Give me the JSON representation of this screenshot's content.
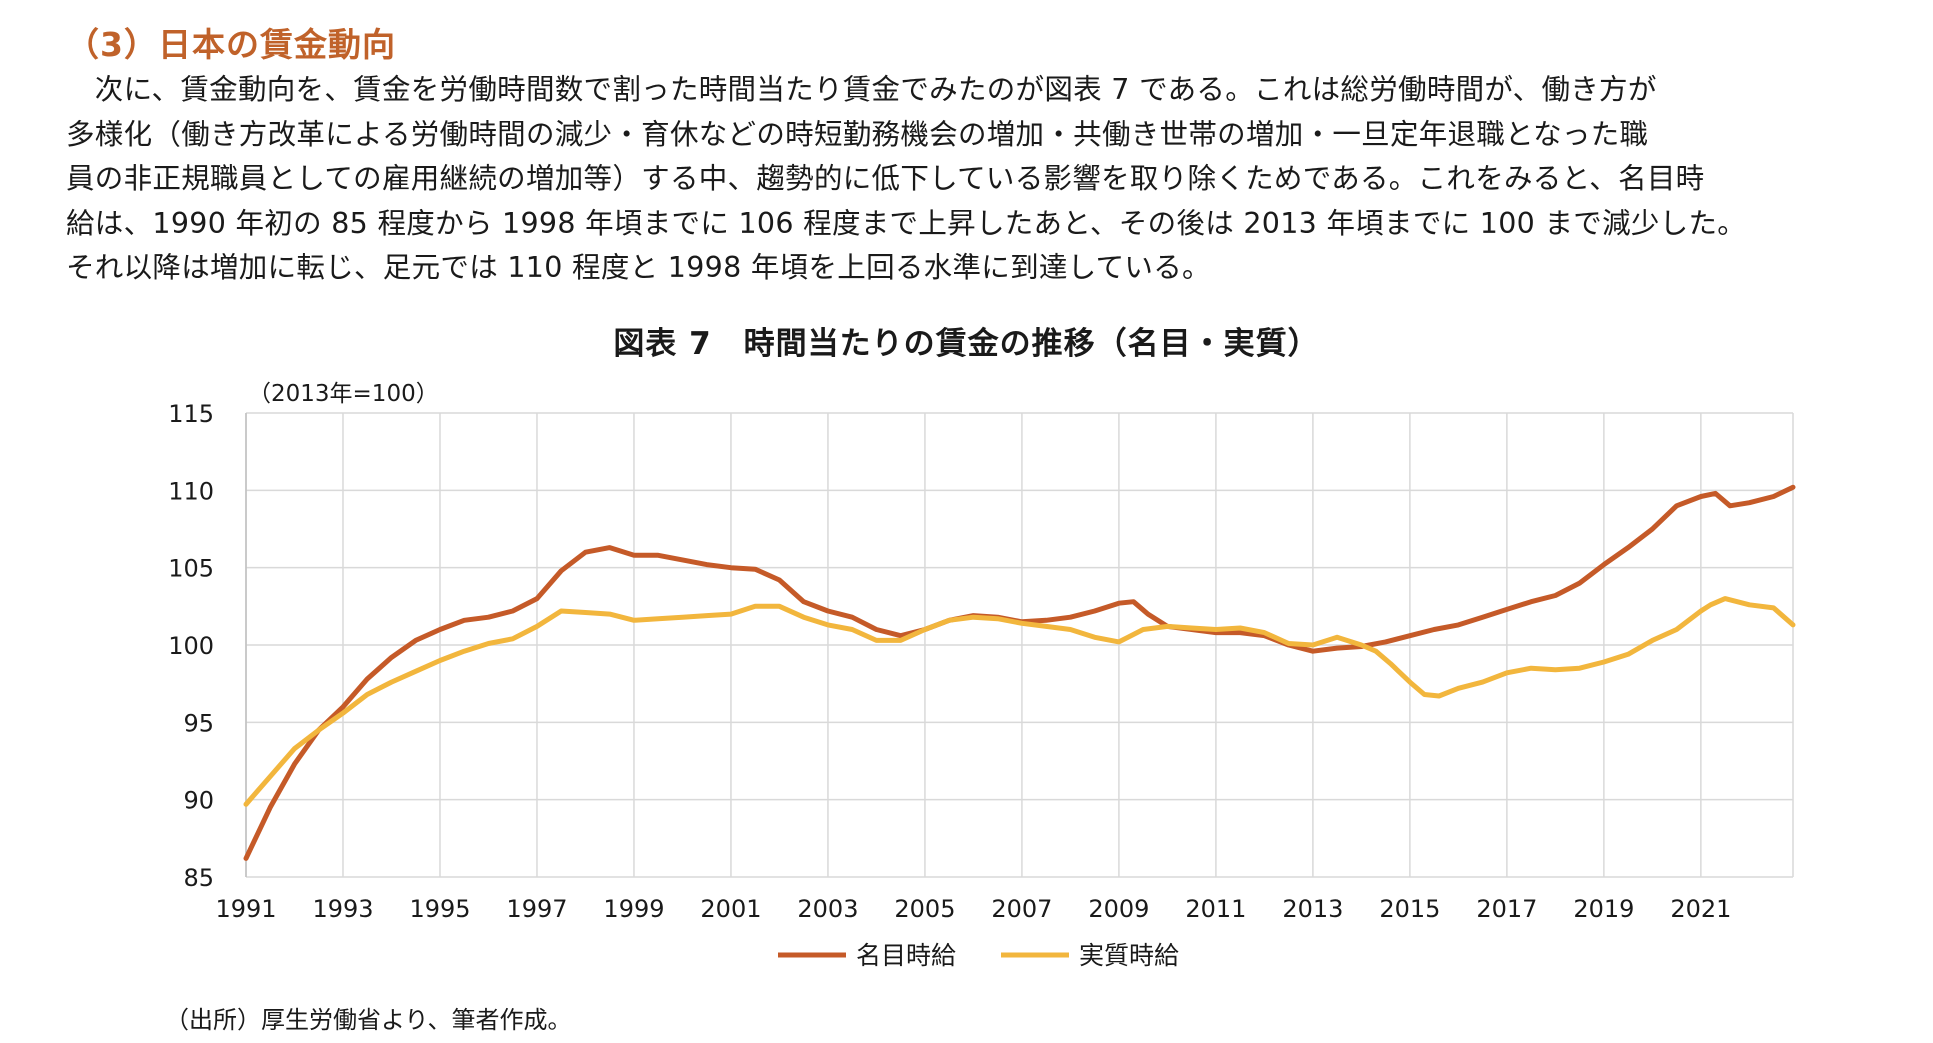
{
  "section": {
    "title": "（3）日本の賃金動向"
  },
  "body": {
    "lines": [
      "　次に、賃金動向を、賃金を労働時間数で割った時間当たり賃金でみたのが図表 7 である。これは総労働時間が、働き方が",
      "多様化（働き方改革による労働時間の減少・育休などの時短勤務機会の増加・共働き世帯の増加・一旦定年退職となった職",
      "員の非正規職員としての雇用継続の増加等）する中、趨勢的に低下している影響を取り除くためである。これをみると、名目時",
      "給は、1990 年初の 85 程度から 1998 年頃までに 106 程度まで上昇したあと、その後は 2013 年頃までに 100 まで減少した。",
      "それ以降は増加に転じ、足元では 110 程度と 1998 年頃を上回る水準に到達している。"
    ]
  },
  "source_note": "（出所）厚生労働省より、筆者作成。",
  "chart_data": {
    "type": "line",
    "title": "図表 7　時間当たりの賃金の推移（名目・実質）",
    "unit_label": "（2013年=100）",
    "xlabel": "",
    "ylabel": "",
    "xlim": [
      1991,
      2022.9
    ],
    "ylim": [
      85,
      115
    ],
    "yticks": [
      85,
      90,
      95,
      100,
      105,
      110,
      115
    ],
    "xticks": [
      "1991",
      "1993",
      "1995",
      "1997",
      "1999",
      "2001",
      "2003",
      "2005",
      "2007",
      "2009",
      "2011",
      "2013",
      "2015",
      "2017",
      "2019",
      "2021"
    ],
    "grid": true,
    "legend_position": "bottom",
    "series": [
      {
        "name": "名目時給",
        "color": "#c55a28",
        "x": [
          1991.0,
          1991.5,
          1992.0,
          1992.5,
          1993.0,
          1993.5,
          1994.0,
          1994.5,
          1995.0,
          1995.5,
          1996.0,
          1996.5,
          1997.0,
          1997.5,
          1998.0,
          1998.5,
          1999.0,
          1999.5,
          2000.0,
          2000.5,
          2001.0,
          2001.5,
          2002.0,
          2002.5,
          2003.0,
          2003.5,
          2004.0,
          2004.5,
          2005.0,
          2005.5,
          2006.0,
          2006.5,
          2007.0,
          2007.5,
          2008.0,
          2008.5,
          2009.0,
          2009.3,
          2009.6,
          2010.0,
          2010.5,
          2011.0,
          2011.5,
          2012.0,
          2012.5,
          2013.0,
          2013.5,
          2014.0,
          2014.5,
          2015.0,
          2015.5,
          2016.0,
          2016.5,
          2017.0,
          2017.5,
          2018.0,
          2018.5,
          2019.0,
          2019.5,
          2020.0,
          2020.5,
          2021.0,
          2021.3,
          2021.6,
          2022.0,
          2022.5,
          2022.9
        ],
        "values": [
          86.2,
          89.5,
          92.3,
          94.5,
          96.0,
          97.8,
          99.2,
          100.3,
          101.0,
          101.6,
          101.8,
          102.2,
          103.0,
          104.8,
          106.0,
          106.3,
          105.8,
          105.8,
          105.5,
          105.2,
          105.0,
          104.9,
          104.2,
          102.8,
          102.2,
          101.8,
          101.0,
          100.6,
          101.0,
          101.6,
          101.9,
          101.8,
          101.5,
          101.6,
          101.8,
          102.2,
          102.7,
          102.8,
          102.0,
          101.2,
          101.0,
          100.8,
          100.8,
          100.6,
          100.0,
          99.6,
          99.8,
          99.9,
          100.2,
          100.6,
          101.0,
          101.3,
          101.8,
          102.3,
          102.8,
          103.2,
          104.0,
          105.2,
          106.3,
          107.5,
          109.0,
          109.6,
          109.8,
          109.0,
          109.2,
          109.6,
          110.2
        ]
      },
      {
        "name": "実質時給",
        "color": "#f2b63d",
        "x": [
          1991.0,
          1991.5,
          1992.0,
          1992.5,
          1993.0,
          1993.5,
          1994.0,
          1994.5,
          1995.0,
          1995.5,
          1996.0,
          1996.5,
          1997.0,
          1997.5,
          1998.0,
          1998.5,
          1999.0,
          1999.5,
          2000.0,
          2000.5,
          2001.0,
          2001.5,
          2002.0,
          2002.5,
          2003.0,
          2003.5,
          2004.0,
          2004.5,
          2005.0,
          2005.5,
          2006.0,
          2006.5,
          2007.0,
          2007.5,
          2008.0,
          2008.5,
          2009.0,
          2009.5,
          2010.0,
          2010.5,
          2011.0,
          2011.5,
          2012.0,
          2012.5,
          2013.0,
          2013.5,
          2014.0,
          2014.3,
          2014.6,
          2015.0,
          2015.3,
          2015.6,
          2016.0,
          2016.5,
          2017.0,
          2017.5,
          2018.0,
          2018.5,
          2019.0,
          2019.5,
          2020.0,
          2020.5,
          2021.0,
          2021.2,
          2021.5,
          2022.0,
          2022.5,
          2022.9
        ],
        "values": [
          89.7,
          91.5,
          93.3,
          94.5,
          95.6,
          96.8,
          97.6,
          98.3,
          99.0,
          99.6,
          100.1,
          100.4,
          101.2,
          102.2,
          102.1,
          102.0,
          101.6,
          101.7,
          101.8,
          101.9,
          102.0,
          102.5,
          102.5,
          101.8,
          101.3,
          101.0,
          100.3,
          100.3,
          101.0,
          101.6,
          101.8,
          101.7,
          101.4,
          101.2,
          101.0,
          100.5,
          100.2,
          101.0,
          101.2,
          101.1,
          101.0,
          101.1,
          100.8,
          100.1,
          100.0,
          100.5,
          100.0,
          99.6,
          98.8,
          97.6,
          96.8,
          96.7,
          97.2,
          97.6,
          98.2,
          98.5,
          98.4,
          98.5,
          98.9,
          99.4,
          100.3,
          101.0,
          102.2,
          102.6,
          103.0,
          102.6,
          102.4,
          101.3
        ]
      }
    ]
  }
}
